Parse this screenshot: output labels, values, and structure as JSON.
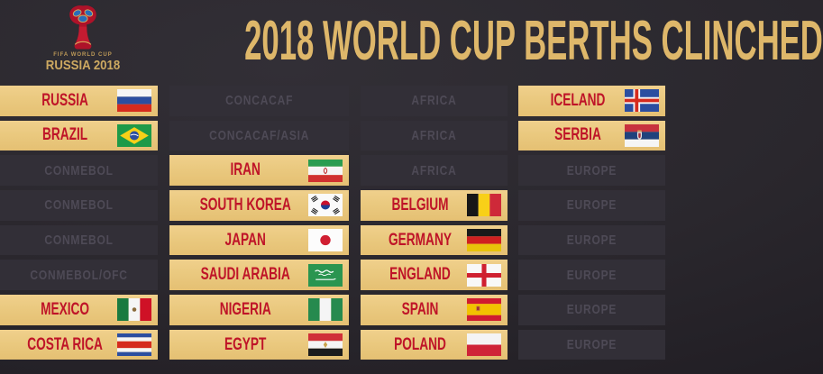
{
  "header": {
    "title": "2018 WORLD CUP BERTHS CLINCHED",
    "logo": {
      "top_label": "FIFA WORLD CUP",
      "bottom_label": "RUSSIA 2018"
    }
  },
  "colors": {
    "background": "#2a272d",
    "gold_cell": "#eac97f",
    "country_text_red": "#bf1428",
    "dark_cell": "#322f37",
    "confederation_text": "#4e4a56",
    "title_gold": "#deb76a"
  },
  "grid": {
    "columns": 4,
    "rows": [
      [
        {
          "type": "country",
          "label": "RUSSIA",
          "flag": "russia"
        },
        {
          "type": "confederation",
          "label": "CONCACAF"
        },
        {
          "type": "confederation",
          "label": "AFRICA"
        },
        {
          "type": "country",
          "label": "ICELAND",
          "flag": "iceland"
        }
      ],
      [
        {
          "type": "country",
          "label": "BRAZIL",
          "flag": "brazil"
        },
        {
          "type": "confederation",
          "label": "CONCACAF/ASIA"
        },
        {
          "type": "confederation",
          "label": "AFRICA"
        },
        {
          "type": "country",
          "label": "SERBIA",
          "flag": "serbia"
        }
      ],
      [
        {
          "type": "confederation",
          "label": "CONMEBOL"
        },
        {
          "type": "country",
          "label": "IRAN",
          "flag": "iran"
        },
        {
          "type": "confederation",
          "label": "AFRICA"
        },
        {
          "type": "confederation",
          "label": "EUROPE"
        }
      ],
      [
        {
          "type": "confederation",
          "label": "CONMEBOL"
        },
        {
          "type": "country",
          "label": "SOUTH KOREA",
          "flag": "south-korea"
        },
        {
          "type": "country",
          "label": "BELGIUM",
          "flag": "belgium"
        },
        {
          "type": "confederation",
          "label": "EUROPE"
        }
      ],
      [
        {
          "type": "confederation",
          "label": "CONMEBOL"
        },
        {
          "type": "country",
          "label": "JAPAN",
          "flag": "japan"
        },
        {
          "type": "country",
          "label": "GERMANY",
          "flag": "germany"
        },
        {
          "type": "confederation",
          "label": "EUROPE"
        }
      ],
      [
        {
          "type": "confederation",
          "label": "CONMEBOL/OFC"
        },
        {
          "type": "country",
          "label": "SAUDI ARABIA",
          "flag": "saudi-arabia"
        },
        {
          "type": "country",
          "label": "ENGLAND",
          "flag": "england"
        },
        {
          "type": "confederation",
          "label": "EUROPE"
        }
      ],
      [
        {
          "type": "country",
          "label": "MEXICO",
          "flag": "mexico"
        },
        {
          "type": "country",
          "label": "NIGERIA",
          "flag": "nigeria"
        },
        {
          "type": "country",
          "label": "SPAIN",
          "flag": "spain"
        },
        {
          "type": "confederation",
          "label": "EUROPE"
        }
      ],
      [
        {
          "type": "country",
          "label": "COSTA RICA",
          "flag": "costa-rica"
        },
        {
          "type": "country",
          "label": "EGYPT",
          "flag": "egypt"
        },
        {
          "type": "country",
          "label": "POLAND",
          "flag": "poland"
        },
        {
          "type": "confederation",
          "label": "EUROPE"
        }
      ]
    ]
  }
}
